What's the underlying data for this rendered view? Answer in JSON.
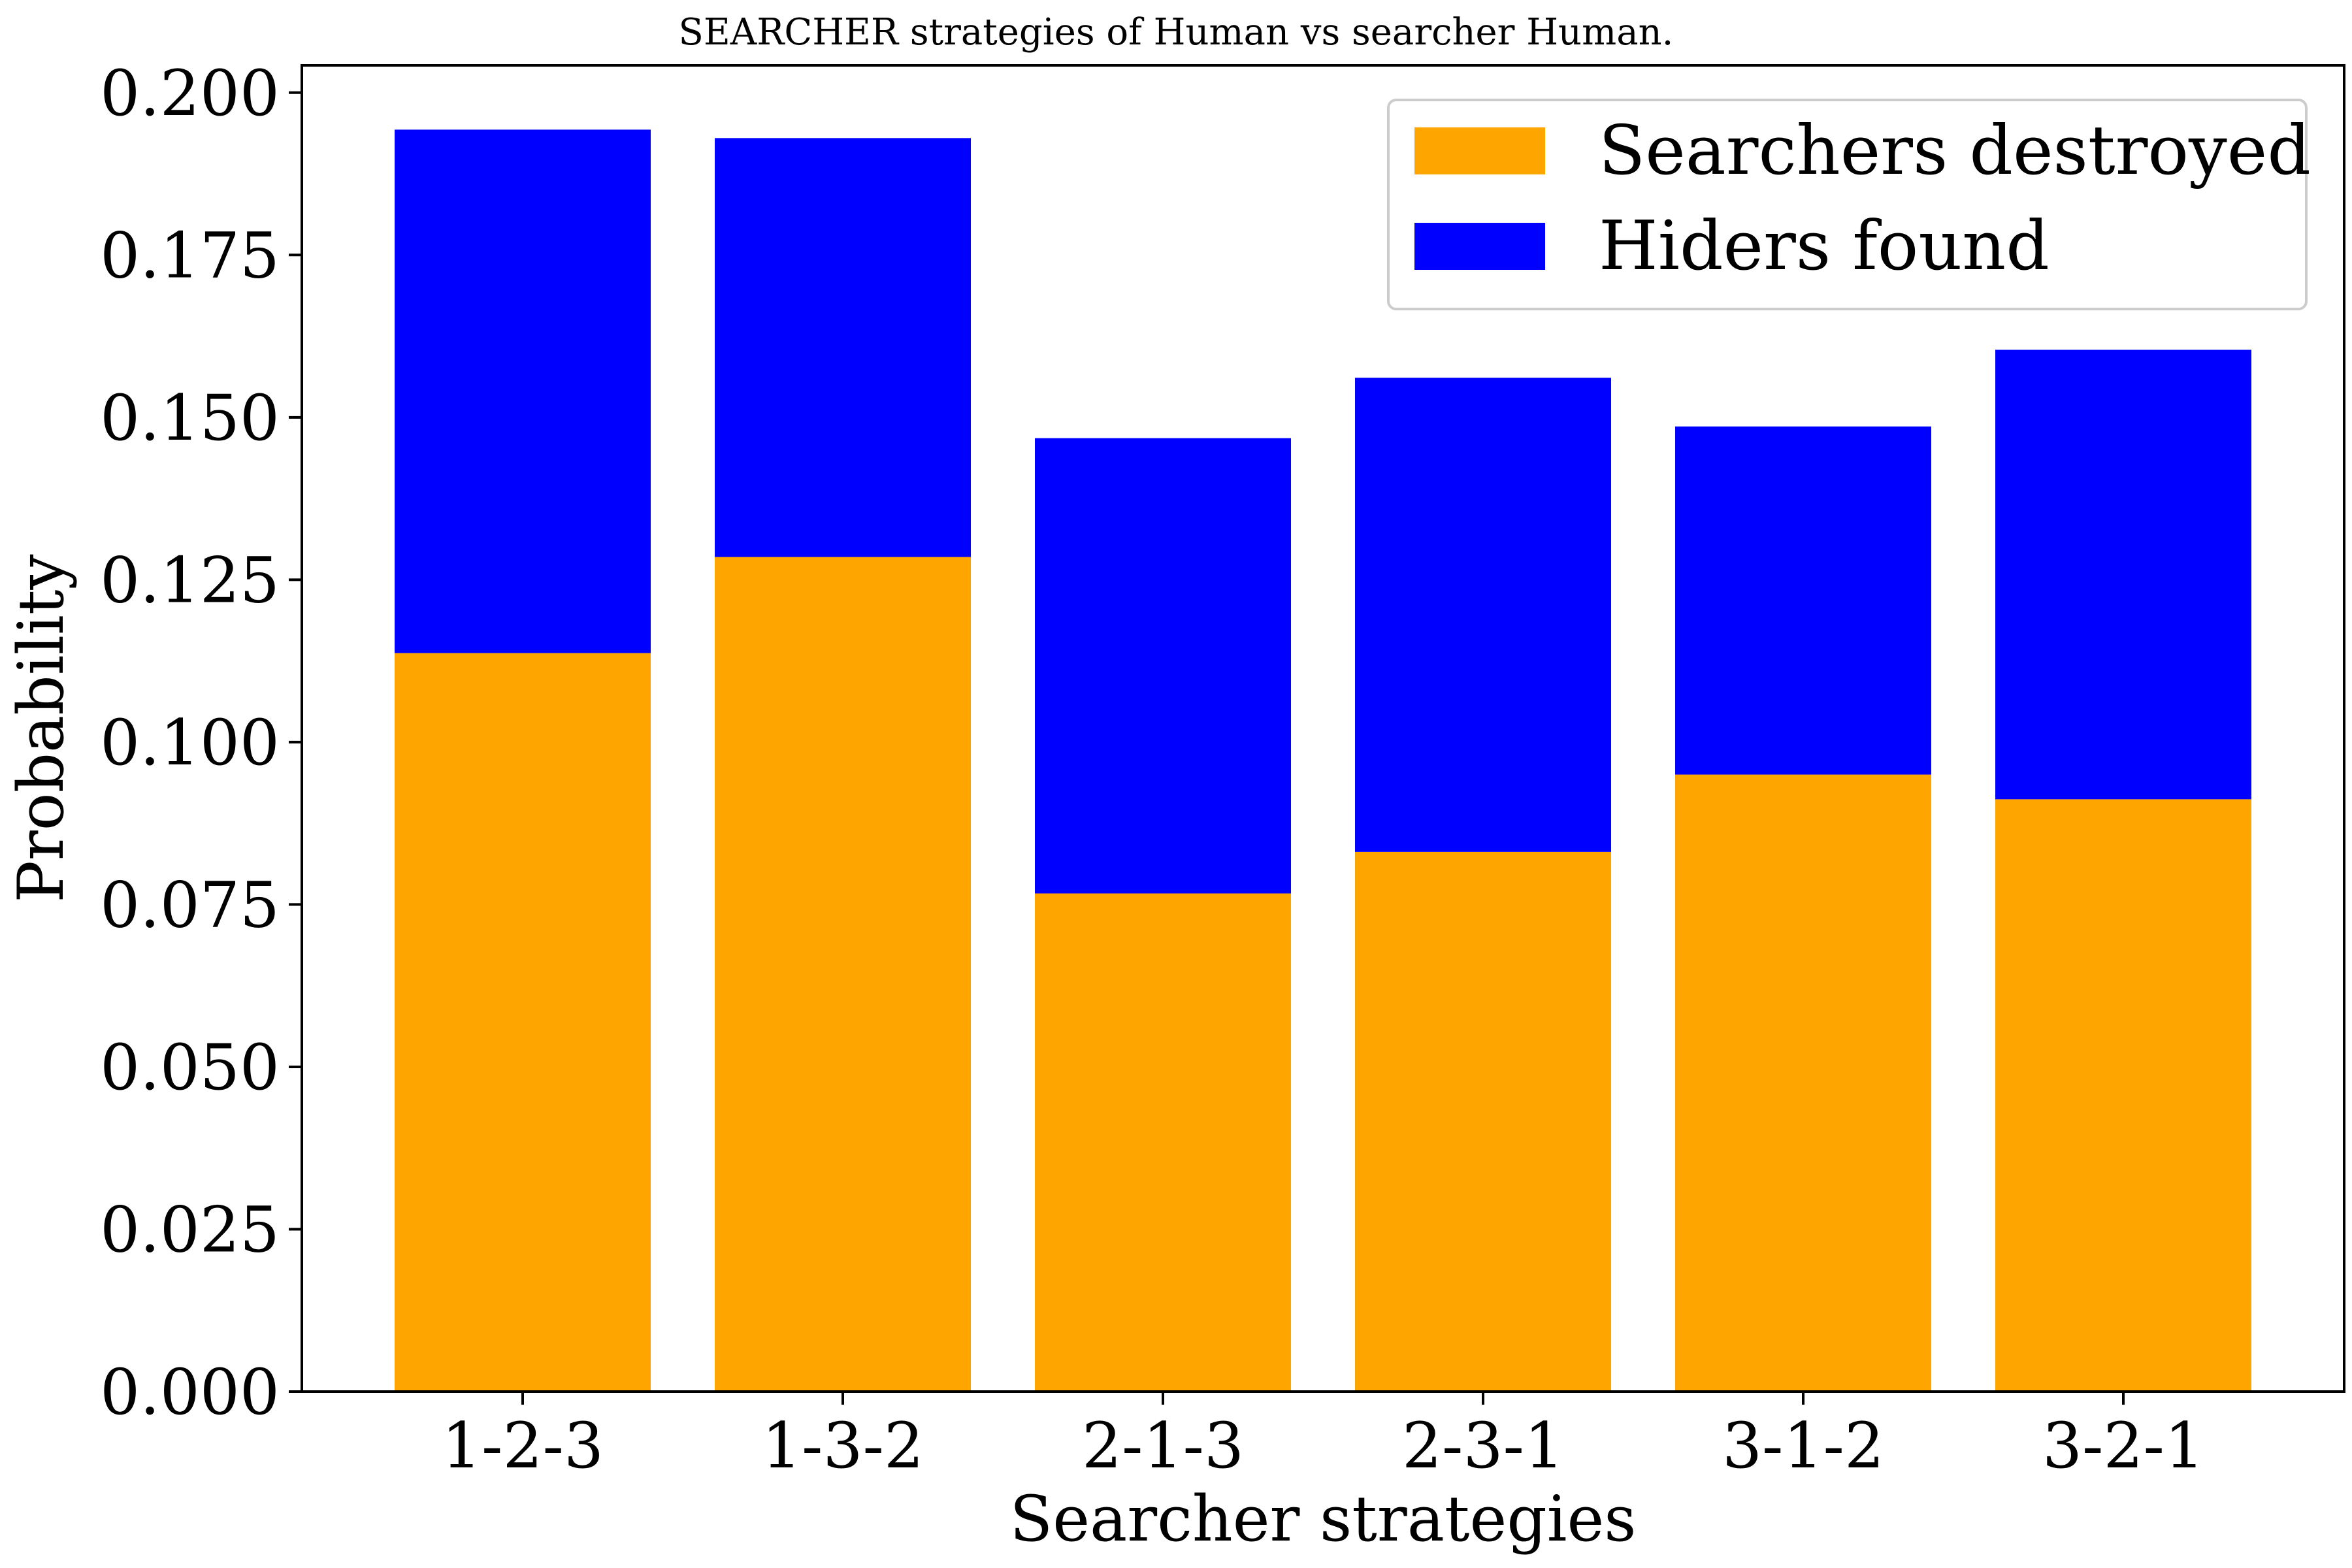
{
  "chart_data": {
    "type": "bar",
    "stacked": true,
    "title": "SEARCHER strategies of Human vs searcher Human.",
    "xlabel": "Searcher strategies",
    "ylabel": "Probability",
    "categories": [
      "1-2-3",
      "1-3-2",
      "2-1-3",
      "2-3-1",
      "3-1-2",
      "3-2-1"
    ],
    "series": [
      {
        "name": "Searchers destroyed",
        "color": "#FFA500",
        "values": [
          0.1137,
          0.1285,
          0.0767,
          0.0831,
          0.095,
          0.0912
        ]
      },
      {
        "name": "Hiders found",
        "color": "#0000FF",
        "values": [
          0.0806,
          0.0645,
          0.0701,
          0.073,
          0.0536,
          0.0692
        ]
      }
    ],
    "ylim": [
      0,
      0.2042
    ],
    "yticks": [
      "0.000",
      "0.025",
      "0.050",
      "0.075",
      "0.100",
      "0.125",
      "0.150",
      "0.175",
      "0.200"
    ],
    "legend_position": "top-right",
    "grid": false
  }
}
